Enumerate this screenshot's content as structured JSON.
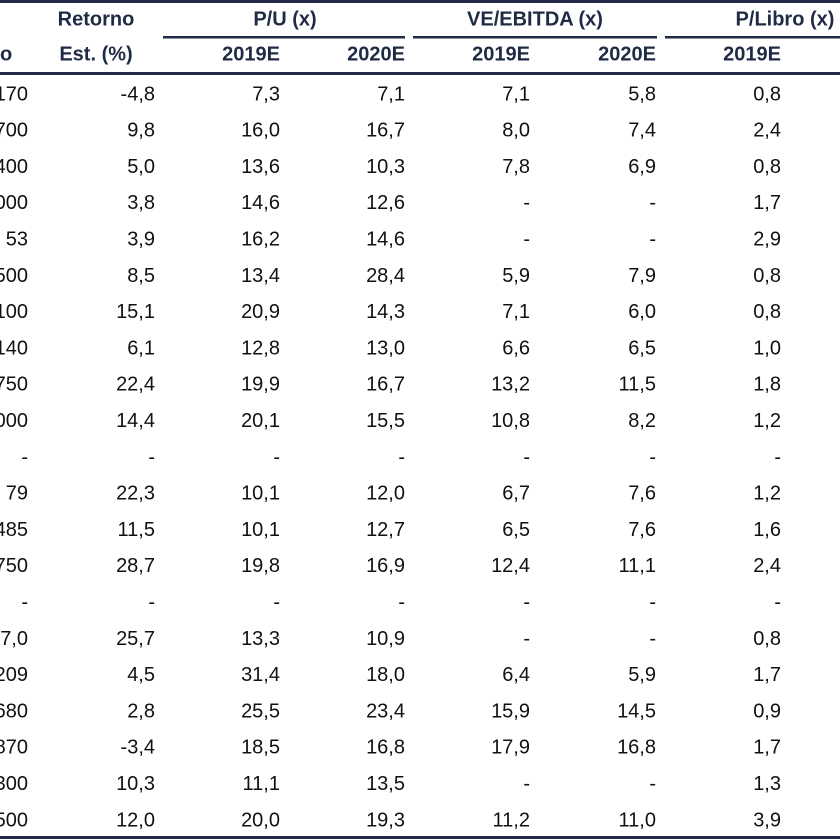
{
  "table": {
    "header": {
      "first_column": "o",
      "return_column": [
        "Retorno",
        "Est. (%)"
      ],
      "groups": [
        {
          "label": "P/U (x)",
          "subcolumns": [
            "2019E",
            "2020E"
          ]
        },
        {
          "label": "VE/EBITDA (x)",
          "subcolumns": [
            "2019E",
            "2020E"
          ]
        },
        {
          "label": "P/Libro (x)",
          "subcolumns": [
            "2019E"
          ]
        }
      ]
    },
    "rows": [
      [
        "170",
        "-4,8",
        "7,3",
        "7,1",
        "7,1",
        "5,8",
        "0,8"
      ],
      [
        "700",
        "9,8",
        "16,0",
        "16,7",
        "8,0",
        "7,4",
        "2,4"
      ],
      [
        "400",
        "5,0",
        "13,6",
        "10,3",
        "7,8",
        "6,9",
        "0,8"
      ],
      [
        "000",
        "3,8",
        "14,6",
        "12,6",
        "-",
        "-",
        "1,7"
      ],
      [
        "53",
        "3,9",
        "16,2",
        "14,6",
        "-",
        "-",
        "2,9"
      ],
      [
        "500",
        "8,5",
        "13,4",
        "28,4",
        "5,9",
        "7,9",
        "0,8"
      ],
      [
        "100",
        "15,1",
        "20,9",
        "14,3",
        "7,1",
        "6,0",
        "0,8"
      ],
      [
        "140",
        "6,1",
        "12,8",
        "13,0",
        "6,6",
        "6,5",
        "1,0"
      ],
      [
        "750",
        "22,4",
        "19,9",
        "16,7",
        "13,2",
        "11,5",
        "1,8"
      ],
      [
        "000",
        "14,4",
        "20,1",
        "15,5",
        "10,8",
        "8,2",
        "1,2"
      ],
      [
        "-",
        "-",
        "-",
        "-",
        "-",
        "-",
        "-"
      ],
      [
        "79",
        "22,3",
        "10,1",
        "12,0",
        "6,7",
        "7,6",
        "1,2"
      ],
      [
        "485",
        "11,5",
        "10,1",
        "12,7",
        "6,5",
        "7,6",
        "1,6"
      ],
      [
        "750",
        "28,7",
        "19,8",
        "16,9",
        "12,4",
        "11,1",
        "2,4"
      ],
      [
        "-",
        "-",
        "-",
        "-",
        "-",
        "-",
        "-"
      ],
      [
        "7,0",
        "25,7",
        "13,3",
        "10,9",
        "-",
        "-",
        "0,8"
      ],
      [
        "209",
        "4,5",
        "31,4",
        "18,0",
        "6,4",
        "5,9",
        "1,7"
      ],
      [
        "680",
        "2,8",
        "25,5",
        "23,4",
        "15,9",
        "14,5",
        "0,9"
      ],
      [
        "870",
        "-3,4",
        "18,5",
        "16,8",
        "17,9",
        "16,8",
        "1,7"
      ],
      [
        "300",
        "10,3",
        "11,1",
        "13,5",
        "-",
        "-",
        "1,3"
      ],
      [
        "500",
        "12,0",
        "20,0",
        "19,3",
        "11,2",
        "11,0",
        "3,9"
      ]
    ]
  }
}
